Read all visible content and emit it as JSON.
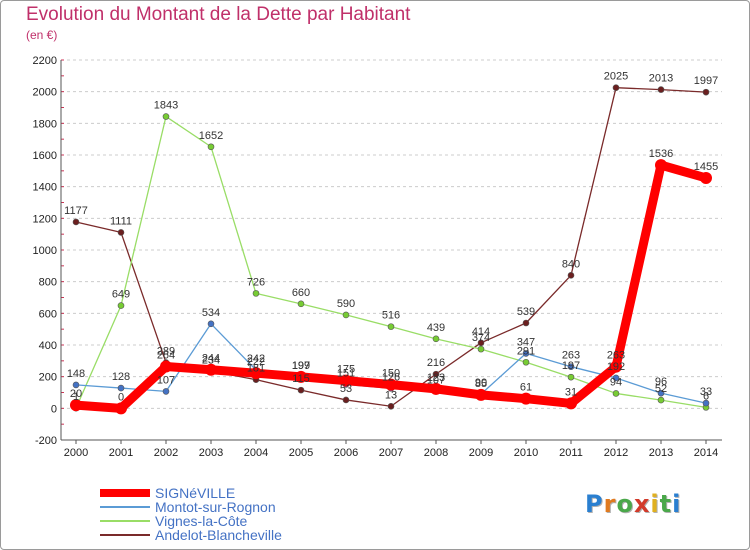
{
  "header": {
    "title": "Evolution du Montant de la Dette par Habitant",
    "subtitle": "(en €)"
  },
  "colors": {
    "title": "#c0306a",
    "grid": "#cccccc",
    "axis": "#555555"
  },
  "logo": {
    "text": "Proxiti",
    "letter_colors": [
      "#2a7fd0",
      "#e07a1f",
      "#4aa84a",
      "#d23a2a",
      "#e0b020",
      "#4aa84a",
      "#2a7fd0"
    ]
  },
  "chart_data": {
    "type": "line",
    "title": "Evolution du Montant de la Dette par Habitant",
    "subtitle": "(en €)",
    "x": [
      "2000",
      "2001",
      "2002",
      "2003",
      "2004",
      "2005",
      "2006",
      "2007",
      "2008",
      "2009",
      "2010",
      "2011",
      "2012",
      "2013",
      "2014"
    ],
    "ylim": [
      -200,
      2200
    ],
    "yticks": [
      -200,
      0,
      200,
      400,
      600,
      800,
      1000,
      1200,
      1400,
      1600,
      1800,
      2000,
      2200
    ],
    "grid": "horizontal dashed",
    "legend_position": "bottom-left",
    "series": [
      {
        "name": "SIGNéVILLE",
        "color": "#ff0000",
        "marker": "#ff0000",
        "values": [
          20,
          0,
          264,
          244,
          222,
          199,
          175,
          150,
          123,
          85,
          61,
          31,
          263,
          1536,
          1455
        ],
        "labels": [
          "20",
          "0",
          "264",
          "244",
          "222",
          "199",
          "175",
          "150",
          "123",
          "85",
          "61",
          "31",
          "263",
          "1536",
          "1455"
        ]
      },
      {
        "name": "Montot-sur-Rognon",
        "color": "#5b9bd5",
        "marker": "#4472c4",
        "values": [
          148,
          128,
          107,
          534,
          242,
          197,
          151,
          126,
          107,
          90,
          347,
          263,
          192,
          96,
          33
        ],
        "labels": [
          "148",
          "128",
          "107",
          "534",
          "242",
          "197",
          "151",
          "126",
          "107",
          "90",
          "347",
          "263",
          "192",
          "96",
          "33"
        ]
      },
      {
        "name": "Vignes-la-Côte",
        "color": "#99dd66",
        "marker": "#77cc33",
        "values": [
          1,
          649,
          1843,
          1652,
          726,
          660,
          590,
          516,
          439,
          374,
          291,
          197,
          94,
          52,
          6
        ],
        "labels": [
          "1",
          "649",
          "1843",
          "1652",
          "726",
          "660",
          "590",
          "516",
          "439",
          "374",
          "291",
          "197",
          "94",
          "52",
          "6"
        ]
      },
      {
        "name": "Andelot-Blancheville",
        "color": "#7a2a2a",
        "marker": "#6b1f1f",
        "values": [
          1177,
          1111,
          289,
          234,
          181,
          115,
          53,
          13,
          216,
          414,
          539,
          840,
          2025,
          2013,
          1997
        ],
        "labels": [
          "1177",
          "1111",
          "289",
          "234",
          "181",
          "115",
          "53",
          "13",
          "216",
          "414",
          "539",
          "840",
          "2025",
          "2013",
          "1997"
        ]
      }
    ]
  }
}
